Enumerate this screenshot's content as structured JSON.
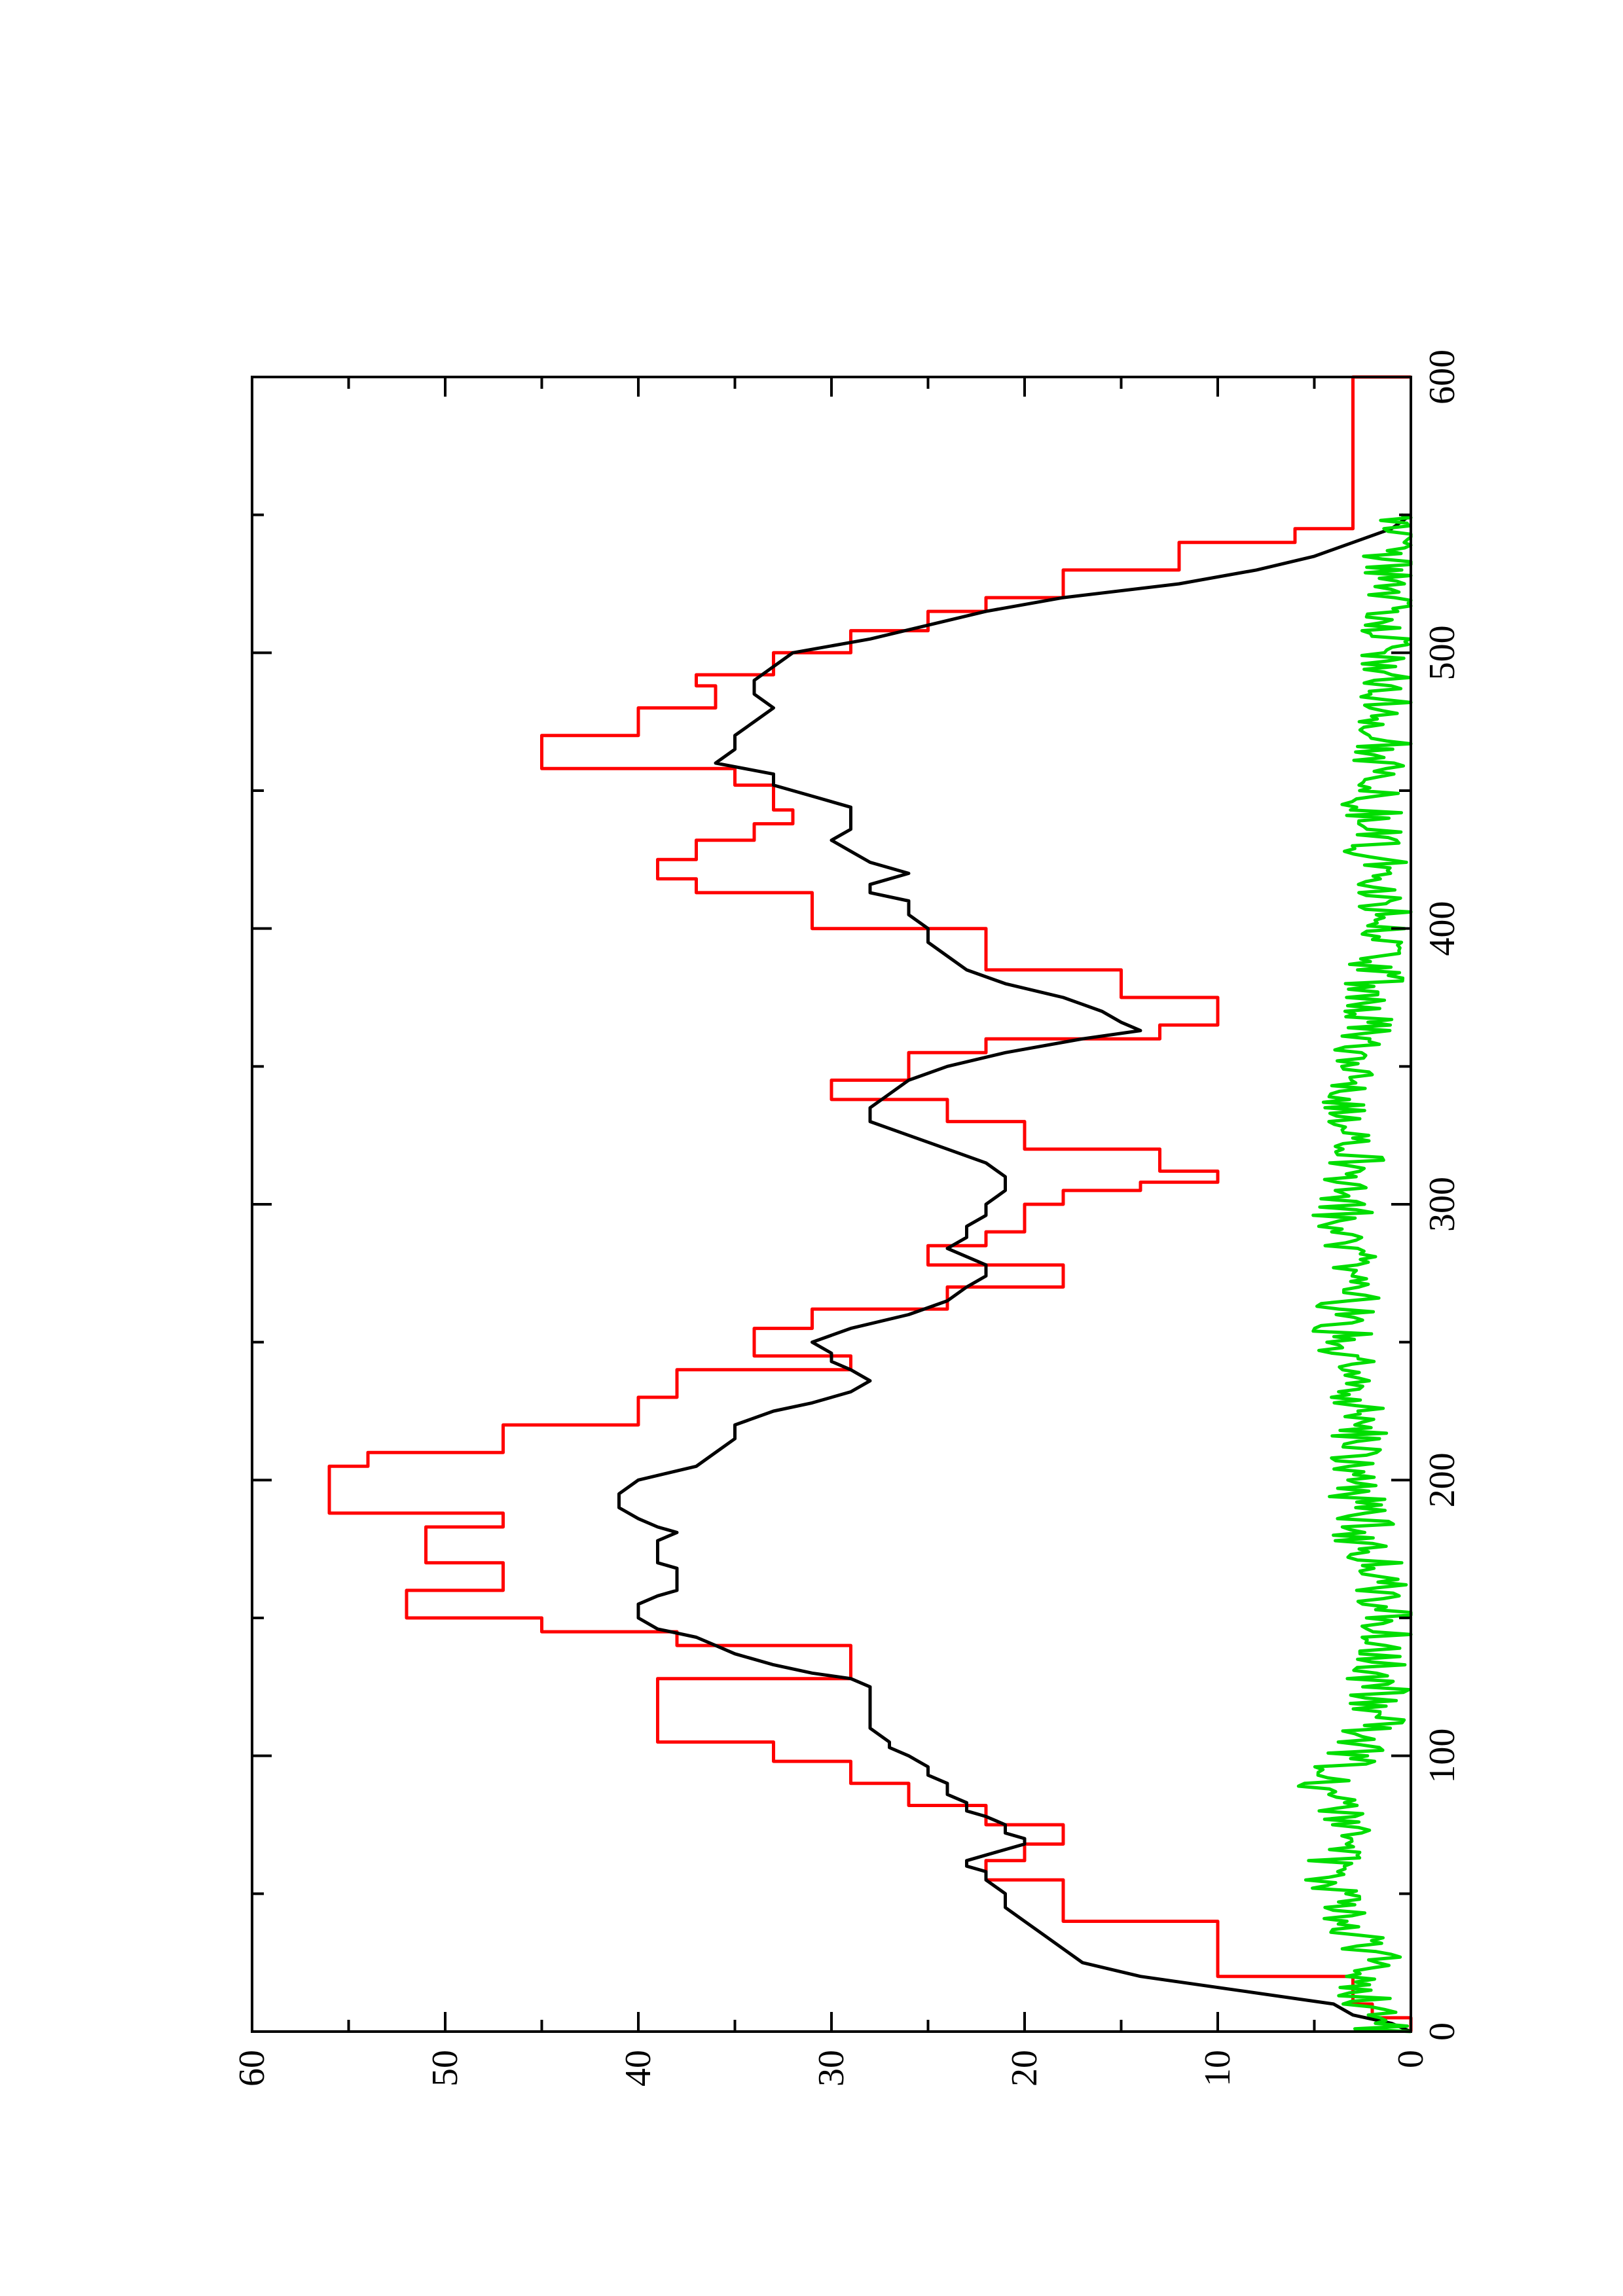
{
  "chart_data": {
    "type": "line",
    "orientation": "rotated-90-ccw",
    "title": "",
    "xlabel": "",
    "ylabel": "",
    "xlim": [
      0,
      600
    ],
    "ylim": [
      0,
      60
    ],
    "x_ticks": [
      0,
      100,
      200,
      300,
      400,
      500,
      600
    ],
    "x_tick_labels": [
      "0",
      "100",
      "200",
      "300",
      "400",
      "500",
      "600"
    ],
    "y_ticks": [
      0,
      10,
      20,
      30,
      40,
      50,
      60
    ],
    "y_tick_labels": [
      "0",
      "10",
      "20",
      "30",
      "40",
      "50",
      "60"
    ],
    "grid": false,
    "legend": "none",
    "series": [
      {
        "color": "#ff0000",
        "step": true,
        "x": [
          0,
          5,
          10,
          20,
          40,
          55,
          62,
          68,
          75,
          82,
          90,
          98,
          105,
          112,
          128,
          140,
          145,
          150,
          160,
          170,
          175,
          183,
          188,
          195,
          205,
          210,
          220,
          230,
          240,
          245,
          255,
          262,
          270,
          278,
          285,
          290,
          300,
          305,
          308,
          312,
          320,
          330,
          338,
          345,
          355,
          360,
          365,
          375,
          385,
          400,
          413,
          418,
          425,
          432,
          438,
          443,
          452,
          458,
          470,
          480,
          488,
          492,
          500,
          508,
          515,
          520,
          530,
          540,
          545,
          600
        ],
        "y": [
          0,
          2,
          3,
          10,
          18,
          22,
          20,
          18,
          22,
          26,
          29,
          33,
          39,
          39,
          29,
          38,
          45,
          52,
          47,
          51,
          51,
          47,
          56,
          56,
          54,
          47,
          40,
          38,
          29,
          34,
          31,
          24,
          18,
          25,
          22,
          20,
          18,
          14,
          10,
          13,
          20,
          24,
          30,
          26,
          22,
          13,
          10,
          15,
          22,
          31,
          37,
          39,
          37,
          34,
          32,
          33,
          35,
          45,
          40,
          36,
          37,
          33,
          29,
          25,
          22,
          18,
          12,
          6,
          3,
          0
        ]
      },
      {
        "color": "#000000",
        "step": false,
        "x": [
          0,
          3,
          6,
          10,
          15,
          20,
          25,
          30,
          35,
          40,
          45,
          50,
          55,
          58,
          60,
          62,
          64,
          66,
          68,
          70,
          72,
          75,
          78,
          80,
          83,
          86,
          90,
          93,
          96,
          100,
          103,
          105,
          110,
          115,
          120,
          125,
          128,
          130,
          133,
          137,
          140,
          143,
          146,
          150,
          155,
          158,
          160,
          163,
          165,
          168,
          170,
          173,
          175,
          178,
          181,
          183,
          186,
          190,
          195,
          200,
          205,
          210,
          215,
          220,
          225,
          228,
          232,
          236,
          240,
          243,
          246,
          250,
          255,
          260,
          265,
          270,
          274,
          278,
          281,
          284,
          288,
          292,
          296,
          300,
          305,
          310,
          315,
          320,
          325,
          330,
          335,
          340,
          345,
          350,
          355,
          360,
          363,
          366,
          370,
          375,
          380,
          385,
          390,
          395,
          400,
          405,
          410,
          413,
          416,
          420,
          424,
          428,
          432,
          436,
          440,
          444,
          448,
          452,
          456,
          460,
          465,
          470,
          475,
          480,
          485,
          490,
          495,
          500,
          505,
          510,
          515,
          520,
          525,
          530,
          535,
          540,
          545,
          550
        ],
        "y": [
          0,
          1,
          3,
          4,
          9,
          14,
          17,
          18,
          19,
          20,
          21,
          21,
          22,
          22,
          23,
          23,
          22,
          21,
          20,
          20,
          21,
          21,
          22,
          23,
          23,
          24,
          24,
          25,
          25,
          26,
          27,
          27,
          28,
          28,
          28,
          28,
          29,
          31,
          33,
          35,
          36,
          37,
          39,
          40,
          40,
          39,
          38,
          38,
          38,
          38,
          39,
          39,
          39,
          39,
          38,
          39,
          40,
          41,
          41,
          40,
          37,
          36,
          35,
          35,
          33,
          31,
          29,
          28,
          29,
          30,
          30,
          31,
          29,
          26,
          24,
          23,
          22,
          22,
          23,
          24,
          23,
          23,
          22,
          22,
          21,
          21,
          22,
          24,
          26,
          28,
          28,
          27,
          26,
          24,
          21,
          17,
          14,
          15,
          16,
          18,
          21,
          23,
          24,
          25,
          25,
          26,
          26,
          28,
          28,
          26,
          28,
          29,
          30,
          29,
          29,
          29,
          31,
          33,
          33,
          36,
          35,
          35,
          34,
          33,
          34,
          34,
          33,
          32,
          28,
          25,
          22,
          18,
          12,
          8,
          5,
          3,
          1,
          0
        ]
      },
      {
        "color": "#00dd00",
        "step": false,
        "noisy": true,
        "x": [
          0,
          10,
          20,
          30,
          40,
          50,
          60,
          70,
          80,
          90,
          100,
          110,
          120,
          130,
          140,
          150,
          160,
          170,
          180,
          190,
          200,
          210,
          220,
          230,
          240,
          250,
          260,
          270,
          280,
          290,
          300,
          310,
          320,
          330,
          340,
          350,
          360,
          370,
          380,
          390,
          400,
          410,
          420,
          430,
          440,
          450,
          460,
          470,
          480,
          490,
          500,
          510,
          520,
          530,
          540,
          550
        ],
        "y": [
          1.5,
          2.0,
          2.5,
          2.0,
          3.0,
          4.0,
          4.5,
          3.5,
          4.0,
          4.5,
          3.0,
          2.0,
          1.5,
          2.0,
          1.5,
          1.0,
          1.5,
          2.0,
          2.5,
          2.5,
          3.0,
          2.5,
          2.5,
          3.0,
          3.0,
          3.5,
          3.5,
          3.0,
          3.0,
          3.5,
          3.5,
          3.0,
          2.5,
          3.0,
          3.0,
          3.0,
          2.5,
          2.0,
          2.0,
          1.5,
          1.5,
          1.5,
          1.5,
          2.0,
          2.0,
          2.0,
          1.5,
          1.5,
          1.5,
          1.0,
          1.0,
          1.0,
          1.0,
          1.0,
          0.8,
          0.5
        ]
      }
    ]
  }
}
